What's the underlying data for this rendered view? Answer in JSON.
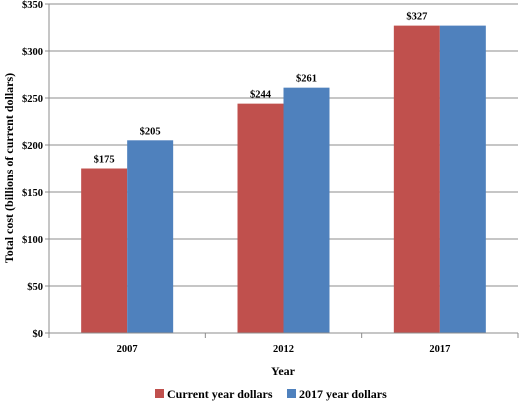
{
  "chart_data": {
    "type": "bar",
    "categories": [
      "2007",
      "2012",
      "2017"
    ],
    "series": [
      {
        "name": "Current year dollars",
        "values": [
          175,
          244,
          327
        ],
        "labels": [
          "$175",
          "$244",
          "$327"
        ],
        "color": "#c0504d"
      },
      {
        "name": "2017 year dollars",
        "values": [
          205,
          261,
          327
        ],
        "labels": [
          "$205",
          "$261",
          ""
        ],
        "color": "#4f81bd"
      }
    ],
    "xlabel": "Year",
    "ylabel": "Total cost (billions of current dollars)",
    "ylim": [
      0,
      350
    ],
    "yticks": [
      {
        "value": 0,
        "label": "$0"
      },
      {
        "value": 50,
        "label": "$50"
      },
      {
        "value": 100,
        "label": "$100"
      },
      {
        "value": 150,
        "label": "$150"
      },
      {
        "value": 200,
        "label": "$200"
      },
      {
        "value": 250,
        "label": "$250"
      },
      {
        "value": 300,
        "label": "$300"
      },
      {
        "value": 350,
        "label": "$350"
      }
    ],
    "grid": true,
    "legend": "bottom"
  }
}
